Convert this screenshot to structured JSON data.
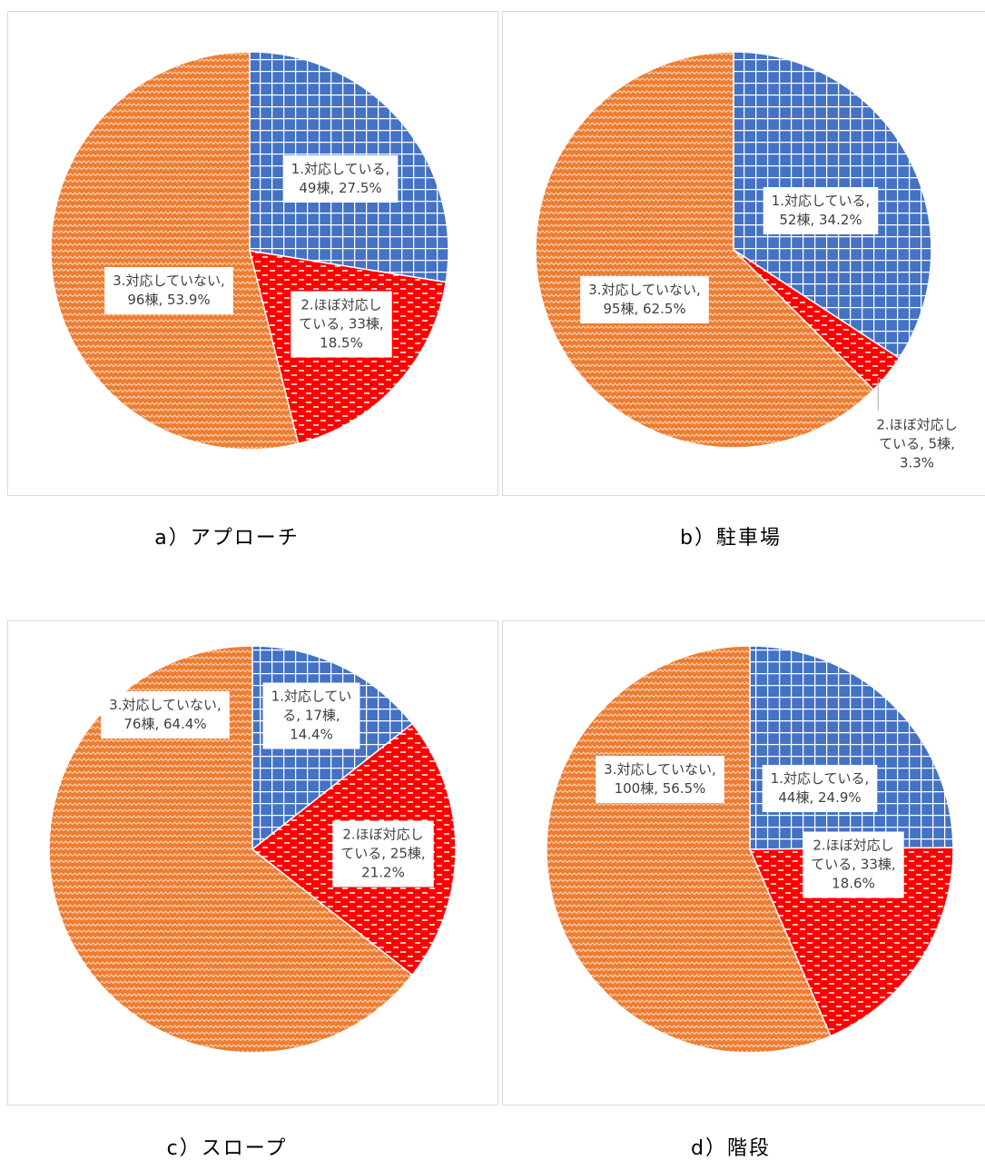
{
  "chart_data": [
    {
      "type": "pie",
      "caption": "a）アプローチ",
      "values": [
        49,
        33,
        96
      ],
      "value_labels": [
        [
          "1.対応している,",
          "49棟, 27.5%"
        ],
        [
          "2.ほぼ対応し",
          "ている, 33棟,",
          "18.5%"
        ],
        [
          "3.対応していない,",
          "96棟, 53.9%"
        ]
      ],
      "colors": [
        "#4472c4",
        "#ff0000",
        "#ed7d31"
      ],
      "patterns": [
        "grid",
        "dash",
        "zigzag"
      ]
    },
    {
      "type": "pie",
      "caption": "b）駐車場",
      "values": [
        52,
        5,
        95
      ],
      "value_labels": [
        [
          "1.対応している,",
          "52棟, 34.2%"
        ],
        [
          "2.ほぼ対応し",
          "ている, 5棟,",
          "3.3%"
        ],
        [
          "3.対応していない,",
          "95棟, 62.5%"
        ]
      ],
      "colors": [
        "#4472c4",
        "#ff0000",
        "#ed7d31"
      ],
      "patterns": [
        "grid",
        "dash",
        "zigzag"
      ]
    },
    {
      "type": "pie",
      "caption": "c）スロープ",
      "values": [
        17,
        25,
        76
      ],
      "value_labels": [
        [
          "1.対応してい",
          "る, 17棟,",
          "14.4%"
        ],
        [
          "2.ほぼ対応し",
          "ている, 25棟,",
          "21.2%"
        ],
        [
          "3.対応していない,",
          "76棟, 64.4%"
        ]
      ],
      "colors": [
        "#4472c4",
        "#ff0000",
        "#ed7d31"
      ],
      "patterns": [
        "grid",
        "dash",
        "zigzag"
      ]
    },
    {
      "type": "pie",
      "caption": "d）階段",
      "values": [
        44,
        33,
        100
      ],
      "value_labels": [
        [
          "1.対応している,",
          "44棟, 24.9%"
        ],
        [
          "2.ほぼ対応し",
          "ている, 33棟,",
          "18.6%"
        ],
        [
          "3.対応していない,",
          "100棟, 56.5%"
        ]
      ],
      "colors": [
        "#4472c4",
        "#ff0000",
        "#ed7d31"
      ],
      "patterns": [
        "grid",
        "dash",
        "zigzag"
      ]
    }
  ]
}
